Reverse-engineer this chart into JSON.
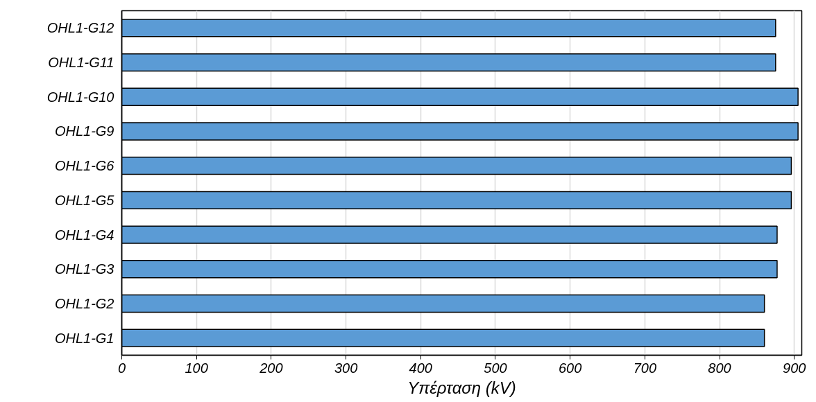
{
  "chart_data": {
    "type": "bar",
    "orientation": "horizontal",
    "xlabel": "Υπέρταση (kV)",
    "categories": [
      "OHL1-G12",
      "OHL1-G11",
      "OHL1-G10",
      "OHL1-G9",
      "OHL1-G6",
      "OHL1-G5",
      "OHL1-G4",
      "OHL1-G3",
      "OHL1-G2",
      "OHL1-G1"
    ],
    "values": [
      875,
      875,
      905,
      905,
      896,
      896,
      877,
      877,
      860,
      860
    ],
    "color": "#5b9bd5",
    "xlim": [
      0,
      910
    ],
    "xticks": [
      0,
      100,
      200,
      300,
      400,
      500,
      600,
      700,
      800,
      900
    ],
    "grid": "x"
  }
}
